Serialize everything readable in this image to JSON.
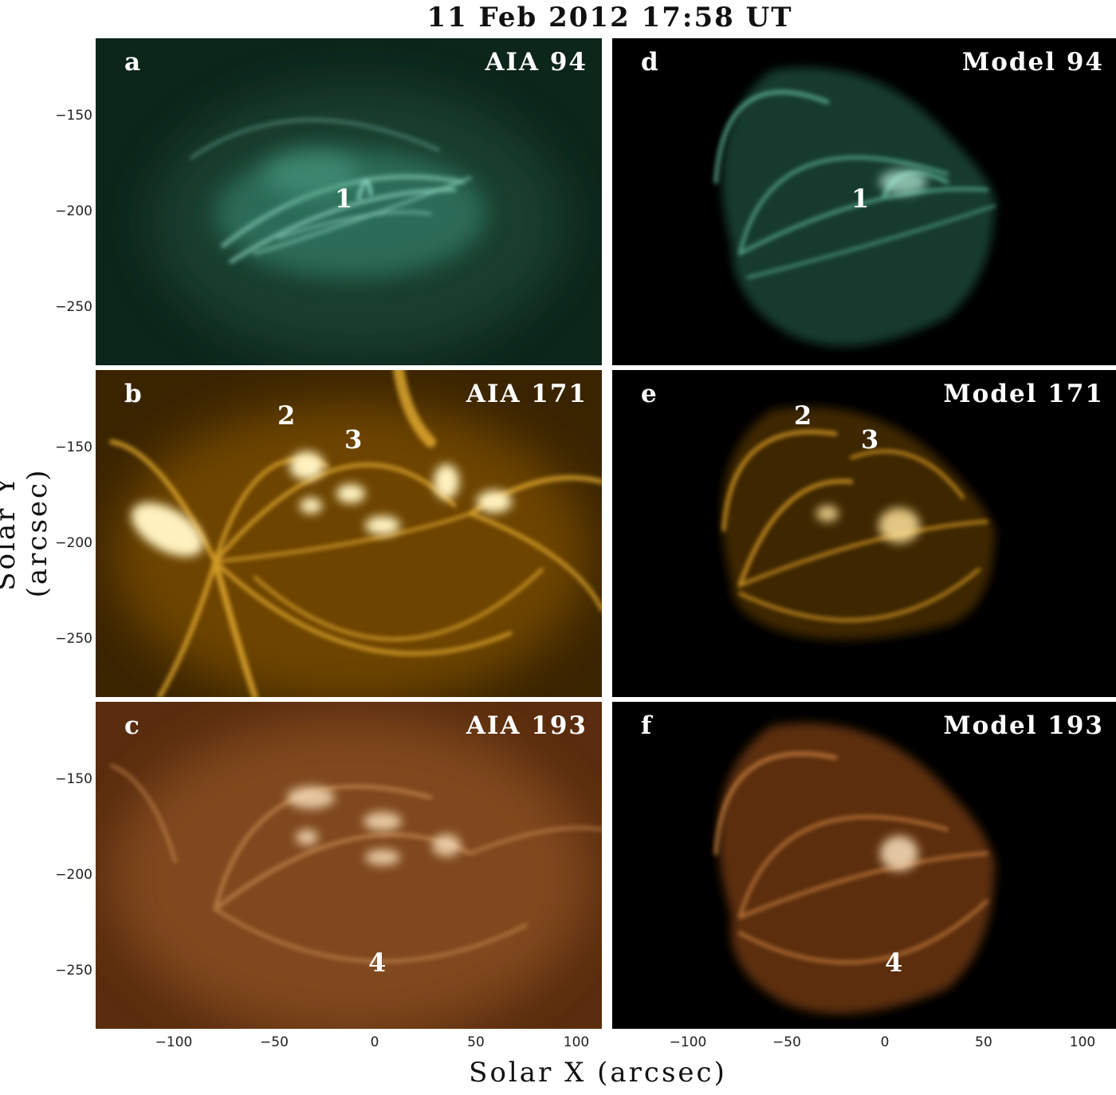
{
  "figure": {
    "title": "11 Feb 2012 17:58 UT",
    "ylabel": "Solar Y (arcsec)",
    "xlabel": "Solar X (arcsec)",
    "yticks": [
      "−150",
      "−200",
      "−250"
    ],
    "xticks": [
      "−100",
      "−50",
      "0",
      "50",
      "100"
    ]
  },
  "panels": [
    {
      "id": "a",
      "title": "AIA 94",
      "color": "#3f9d84",
      "annotations": [
        "1"
      ]
    },
    {
      "id": "b",
      "title": "AIA 171",
      "color": "#e3a016",
      "annotations": [
        "2",
        "3"
      ]
    },
    {
      "id": "c",
      "title": "AIA 193",
      "color": "#b06a2c",
      "annotations": [
        "4"
      ]
    },
    {
      "id": "d",
      "title": "Model 94",
      "color": "#3f9d84",
      "annotations": [
        "1"
      ]
    },
    {
      "id": "e",
      "title": "Model 171",
      "color": "#e3a016",
      "annotations": [
        "2",
        "3"
      ]
    },
    {
      "id": "f",
      "title": "Model 193",
      "color": "#b06a2c",
      "annotations": [
        "4"
      ]
    }
  ]
}
